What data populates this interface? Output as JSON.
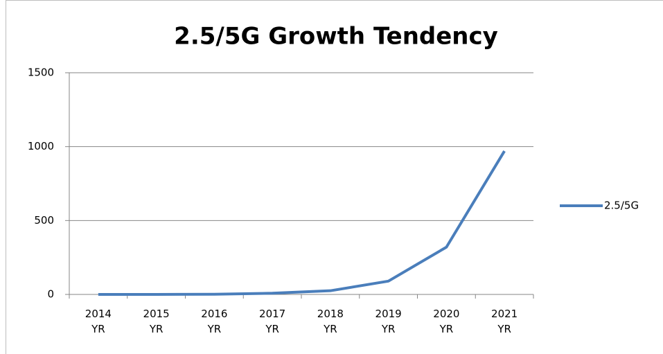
{
  "chart_data": {
    "type": "line",
    "title": "2.5/5G Growth Tendency",
    "categories": [
      "2014 YR",
      "2015 YR",
      "2016 YR",
      "2017 YR",
      "2018 YR",
      "2019 YR",
      "2020 YR",
      "2021 YR"
    ],
    "series": [
      {
        "name": "2.5/5G",
        "color": "#4a7ebb",
        "values": [
          0,
          0,
          1,
          8,
          25,
          90,
          320,
          970
        ]
      }
    ],
    "ylim": [
      0,
      1500
    ],
    "yticks": [
      0,
      500,
      1000,
      1500
    ],
    "grid": true,
    "legend": "right"
  }
}
